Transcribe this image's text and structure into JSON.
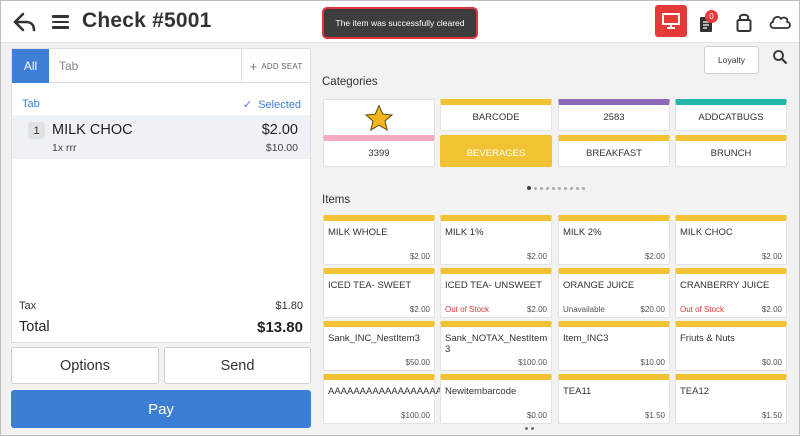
{
  "header": {
    "title": "Check #5001",
    "toast": "The item was successfully cleared",
    "orders_badge": "0"
  },
  "ticket": {
    "tabs": {
      "all_label": "All",
      "tab_placeholder": "Tab",
      "add_seat_label": "ADD SEAT"
    },
    "section_label": "Tab",
    "selected_label": "Selected",
    "items": [
      {
        "seq": "1",
        "name": "MILK CHOC",
        "price": "$2.00",
        "modifier": "1x  rrr",
        "modifier_price": "$10.00"
      }
    ],
    "tax_label": "Tax",
    "tax_value": "$1.80",
    "total_label": "Total",
    "total_value": "$13.80"
  },
  "actions": {
    "options_label": "Options",
    "send_label": "Send",
    "pay_label": "Pay"
  },
  "menu": {
    "loyalty_label": "Loyalty",
    "categories_title": "Categories",
    "categories": [
      {
        "label": "",
        "icon": "star-icon",
        "color": "#ffffff"
      },
      {
        "label": "BARCODE",
        "color": "#f1c232"
      },
      {
        "label": "2583",
        "color": "#8e6bb8"
      },
      {
        "label": "ADDCATBUGS",
        "color": "#26b5a6"
      },
      {
        "label": "3399",
        "color": "#f6a9bf"
      },
      {
        "label": "BEVERAGES",
        "color": "#f1c232",
        "selected": true
      },
      {
        "label": "BREAKFAST",
        "color": "#f1c232"
      },
      {
        "label": "BRUNCH",
        "color": "#f1c232"
      }
    ],
    "items_title": "Items",
    "items": [
      {
        "name": "MILK WHOLE",
        "price": "$2.00",
        "status": ""
      },
      {
        "name": "MILK 1%",
        "price": "$2.00",
        "status": ""
      },
      {
        "name": "MILK 2%",
        "price": "$2.00",
        "status": ""
      },
      {
        "name": "MILK CHOC",
        "price": "$2.00",
        "status": ""
      },
      {
        "name": "ICED TEA- SWEET",
        "price": "$2.00",
        "status": ""
      },
      {
        "name": "ICED TEA- UNSWEET",
        "price": "$2.00",
        "status": "Out of Stock"
      },
      {
        "name": "ORANGE JUICE",
        "price": "$20.00",
        "status": "Unavailable"
      },
      {
        "name": "CRANBERRY JUICE",
        "price": "$2.00",
        "status": "Out of Stock"
      },
      {
        "name": "Sank_INC_NestItem3",
        "price": "$50.00",
        "status": ""
      },
      {
        "name": "Sank_NOTAX_NestItem 3",
        "price": "$100.00",
        "status": ""
      },
      {
        "name": "Item_INC3",
        "price": "$10.00",
        "status": ""
      },
      {
        "name": "Friuts & Nuts",
        "price": "$0.00",
        "status": ""
      },
      {
        "name": "AAAAAAAAAAAAAAAAAAAA",
        "price": "$100.00",
        "status": ""
      },
      {
        "name": "Newitembarcode",
        "price": "$0.00",
        "status": ""
      },
      {
        "name": "TEA11",
        "price": "$1.50",
        "status": ""
      },
      {
        "name": "TEA12",
        "price": "$1.50",
        "status": ""
      }
    ],
    "status_colors": {
      "Out of Stock": "#e53935",
      "Unavailable": "#555555"
    },
    "tile_color": "#f1c232"
  }
}
